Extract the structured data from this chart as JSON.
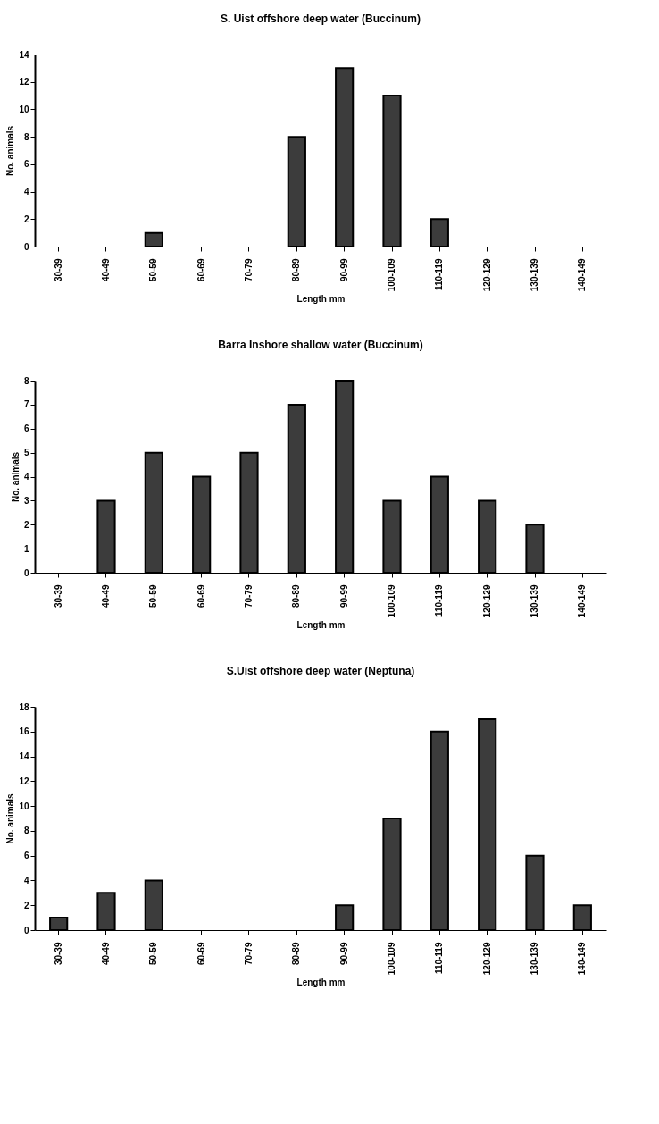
{
  "chart_data": [
    {
      "type": "bar",
      "title": "S. Uist  offshore deep water (Buccinum)",
      "xlabel": "Length mm",
      "ylabel": "No. animals",
      "categories": [
        "30-39",
        "40-49",
        "50-59",
        "60-69",
        "70-79",
        "80-89",
        "90-99",
        "100-109",
        "110-119",
        "120-129",
        "130-139",
        "140-149"
      ],
      "values": [
        0,
        0,
        1,
        0,
        0,
        8,
        13,
        11,
        2,
        0,
        0,
        0
      ],
      "color": "#3c3c3c",
      "ylim": [
        0,
        14
      ],
      "yticks": [
        0,
        2,
        4,
        6,
        8,
        10,
        12,
        14
      ],
      "grid": false
    },
    {
      "type": "bar",
      "title": "Barra Inshore shallow water (Buccinum)",
      "xlabel": "Length mm",
      "ylabel": "No. animals",
      "categories": [
        "30-39",
        "40-49",
        "50-59",
        "60-69",
        "70-79",
        "80-89",
        "90-99",
        "100-109",
        "110-119",
        "120-129",
        "130-139",
        "140-149"
      ],
      "values": [
        0,
        3,
        5,
        4,
        5,
        7,
        8,
        3,
        4,
        3,
        2,
        0
      ],
      "color": "#3c3c3c",
      "ylim": [
        0,
        8
      ],
      "yticks": [
        0,
        1,
        2,
        3,
        4,
        5,
        6,
        7,
        8
      ],
      "grid": false
    },
    {
      "type": "bar",
      "title": "S.Uist offshore deep water (Neptuna)",
      "xlabel": "Length mm",
      "ylabel": "No. animals",
      "categories": [
        "30-39",
        "40-49",
        "50-59",
        "60-69",
        "70-79",
        "80-89",
        "90-99",
        "100-109",
        "110-119",
        "120-129",
        "130-139",
        "140-149"
      ],
      "values": [
        1,
        3,
        4,
        0,
        0,
        0,
        2,
        9,
        16,
        17,
        6,
        2
      ],
      "color": "#3c3c3c",
      "ylim": [
        0,
        18
      ],
      "yticks": [
        0,
        2,
        4,
        6,
        8,
        10,
        12,
        14,
        16,
        18
      ],
      "grid": false
    }
  ]
}
